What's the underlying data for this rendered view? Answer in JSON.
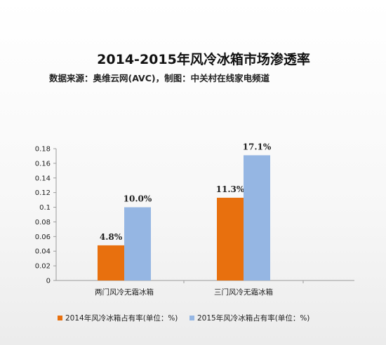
{
  "colors": {
    "s2014": "#e8700e",
    "s2015": "#95b6e3",
    "axis": "#9a9a9a",
    "text": "#222222"
  },
  "chart_data": {
    "type": "bar",
    "title": "2014-2015年风冷冰箱市场渗透率",
    "subtitle": "数据来源：奥维云网(AVC)，制图：中关村在线家电频道",
    "categories": [
      "两门风冷无霜冰箱",
      "三门风冷无霜冰箱"
    ],
    "series": [
      {
        "name": "2014年风冷冰箱占有率(单位：%)",
        "values": [
          0.048,
          0.113
        ],
        "labels": [
          "4.8%",
          "11.3%"
        ]
      },
      {
        "name": "2015年风冷冰箱占有率(单位：%)",
        "values": [
          0.1,
          0.171
        ],
        "labels": [
          "10.0%",
          "17.1%"
        ]
      }
    ],
    "yticks": [
      "0",
      "0.02",
      "0.04",
      "0.06",
      "0.08",
      "0.1",
      "0.12",
      "0.14",
      "0.16",
      "0.18"
    ],
    "ylim": [
      0,
      0.18
    ],
    "grid": false,
    "legend": "bottom"
  }
}
